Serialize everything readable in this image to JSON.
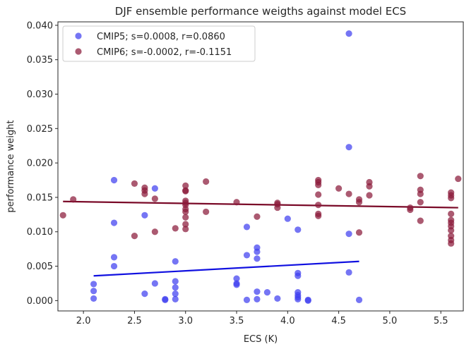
{
  "chart_data": {
    "type": "scatter",
    "title": "DJF ensemble performance weigths against model ECS",
    "xlabel": "ECS (K)",
    "ylabel": "performance weight",
    "xlim": [
      1.75,
      5.72
    ],
    "ylim": [
      -0.0015,
      0.0405
    ],
    "xticks": [
      "2.0",
      "2.5",
      "3.0",
      "3.5",
      "4.0",
      "4.5",
      "5.0",
      "5.5"
    ],
    "xtick_values": [
      2.0,
      2.5,
      3.0,
      3.5,
      4.0,
      4.5,
      5.0,
      5.5
    ],
    "yticks": [
      "0.000",
      "0.005",
      "0.010",
      "0.015",
      "0.020",
      "0.025",
      "0.030",
      "0.035",
      "0.040"
    ],
    "ytick_values": [
      0.0,
      0.005,
      0.01,
      0.015,
      0.02,
      0.025,
      0.03,
      0.035,
      0.04
    ],
    "grid": false,
    "legend_position": "upper-left",
    "series": [
      {
        "name": "CMIP5; s=0.0008, r=0.0860",
        "color": "#4040f0",
        "fit_color": "#1010e0",
        "fit": [
          [
            2.1,
            0.0036
          ],
          [
            4.7,
            0.0057
          ]
        ],
        "points": [
          [
            2.1,
            0.0024
          ],
          [
            2.1,
            0.0014
          ],
          [
            2.1,
            0.0003
          ],
          [
            2.3,
            0.0175
          ],
          [
            2.3,
            0.0113
          ],
          [
            2.3,
            0.0063
          ],
          [
            2.3,
            0.005
          ],
          [
            2.6,
            0.0124
          ],
          [
            2.6,
            0.001
          ],
          [
            2.7,
            0.0163
          ],
          [
            2.7,
            0.0025
          ],
          [
            2.8,
            0.0002
          ],
          [
            2.8,
            0.0001
          ],
          [
            2.9,
            0.0057
          ],
          [
            2.9,
            0.0028
          ],
          [
            2.9,
            0.0019
          ],
          [
            2.9,
            0.001
          ],
          [
            2.9,
            0.0002
          ],
          [
            3.5,
            0.0032
          ],
          [
            3.5,
            0.0025
          ],
          [
            3.5,
            0.0023
          ],
          [
            3.6,
            0.0107
          ],
          [
            3.6,
            0.0066
          ],
          [
            3.6,
            0.0001
          ],
          [
            3.7,
            0.0077
          ],
          [
            3.7,
            0.0071
          ],
          [
            3.7,
            0.0061
          ],
          [
            3.7,
            0.0013
          ],
          [
            3.7,
            0.0002
          ],
          [
            3.8,
            0.0012
          ],
          [
            3.9,
            0.0003
          ],
          [
            4.0,
            0.0119
          ],
          [
            4.1,
            0.0103
          ],
          [
            4.1,
            0.004
          ],
          [
            4.1,
            0.0036
          ],
          [
            4.1,
            0.0012
          ],
          [
            4.1,
            0.0008
          ],
          [
            4.1,
            0.0005
          ],
          [
            4.1,
            0.0002
          ],
          [
            4.2,
            0.0001
          ],
          [
            4.2,
            0.0
          ],
          [
            4.6,
            0.0388
          ],
          [
            4.6,
            0.0223
          ],
          [
            4.6,
            0.0097
          ],
          [
            4.6,
            0.0041
          ],
          [
            4.7,
            0.0001
          ]
        ]
      },
      {
        "name": "CMIP6; s=-0.0002, r=-0.1151",
        "color": "#8b1a3a",
        "fit_color": "#7a0a28",
        "fit": [
          [
            1.8,
            0.0144
          ],
          [
            5.67,
            0.0135
          ]
        ],
        "points": [
          [
            1.8,
            0.0124
          ],
          [
            1.9,
            0.0147
          ],
          [
            2.5,
            0.017
          ],
          [
            2.5,
            0.0094
          ],
          [
            2.6,
            0.0164
          ],
          [
            2.6,
            0.016
          ],
          [
            2.6,
            0.0155
          ],
          [
            2.7,
            0.0148
          ],
          [
            2.7,
            0.01
          ],
          [
            2.9,
            0.0105
          ],
          [
            3.0,
            0.0167
          ],
          [
            3.0,
            0.016
          ],
          [
            3.0,
            0.0159
          ],
          [
            3.0,
            0.0145
          ],
          [
            3.0,
            0.0142
          ],
          [
            3.0,
            0.0139
          ],
          [
            3.0,
            0.0133
          ],
          [
            3.0,
            0.0129
          ],
          [
            3.0,
            0.0121
          ],
          [
            3.0,
            0.0111
          ],
          [
            3.0,
            0.0104
          ],
          [
            3.2,
            0.0173
          ],
          [
            3.2,
            0.0129
          ],
          [
            3.5,
            0.0143
          ],
          [
            3.7,
            0.0122
          ],
          [
            3.9,
            0.0142
          ],
          [
            3.9,
            0.014
          ],
          [
            3.9,
            0.0135
          ],
          [
            4.3,
            0.0175
          ],
          [
            4.3,
            0.0172
          ],
          [
            4.3,
            0.0168
          ],
          [
            4.3,
            0.0154
          ],
          [
            4.3,
            0.0139
          ],
          [
            4.3,
            0.0126
          ],
          [
            4.3,
            0.0123
          ],
          [
            4.5,
            0.0163
          ],
          [
            4.6,
            0.0155
          ],
          [
            4.7,
            0.0147
          ],
          [
            4.7,
            0.0143
          ],
          [
            4.7,
            0.0099
          ],
          [
            4.8,
            0.0172
          ],
          [
            4.8,
            0.0166
          ],
          [
            4.8,
            0.0153
          ],
          [
            5.2,
            0.0135
          ],
          [
            5.2,
            0.0132
          ],
          [
            5.3,
            0.0181
          ],
          [
            5.3,
            0.0161
          ],
          [
            5.3,
            0.0155
          ],
          [
            5.3,
            0.0143
          ],
          [
            5.3,
            0.0116
          ],
          [
            5.6,
            0.0157
          ],
          [
            5.6,
            0.0153
          ],
          [
            5.6,
            0.0149
          ],
          [
            5.6,
            0.0126
          ],
          [
            5.6,
            0.0117
          ],
          [
            5.6,
            0.0113
          ],
          [
            5.6,
            0.0108
          ],
          [
            5.6,
            0.0102
          ],
          [
            5.6,
            0.0094
          ],
          [
            5.6,
            0.0088
          ],
          [
            5.6,
            0.0083
          ],
          [
            5.67,
            0.0177
          ]
        ]
      }
    ]
  }
}
